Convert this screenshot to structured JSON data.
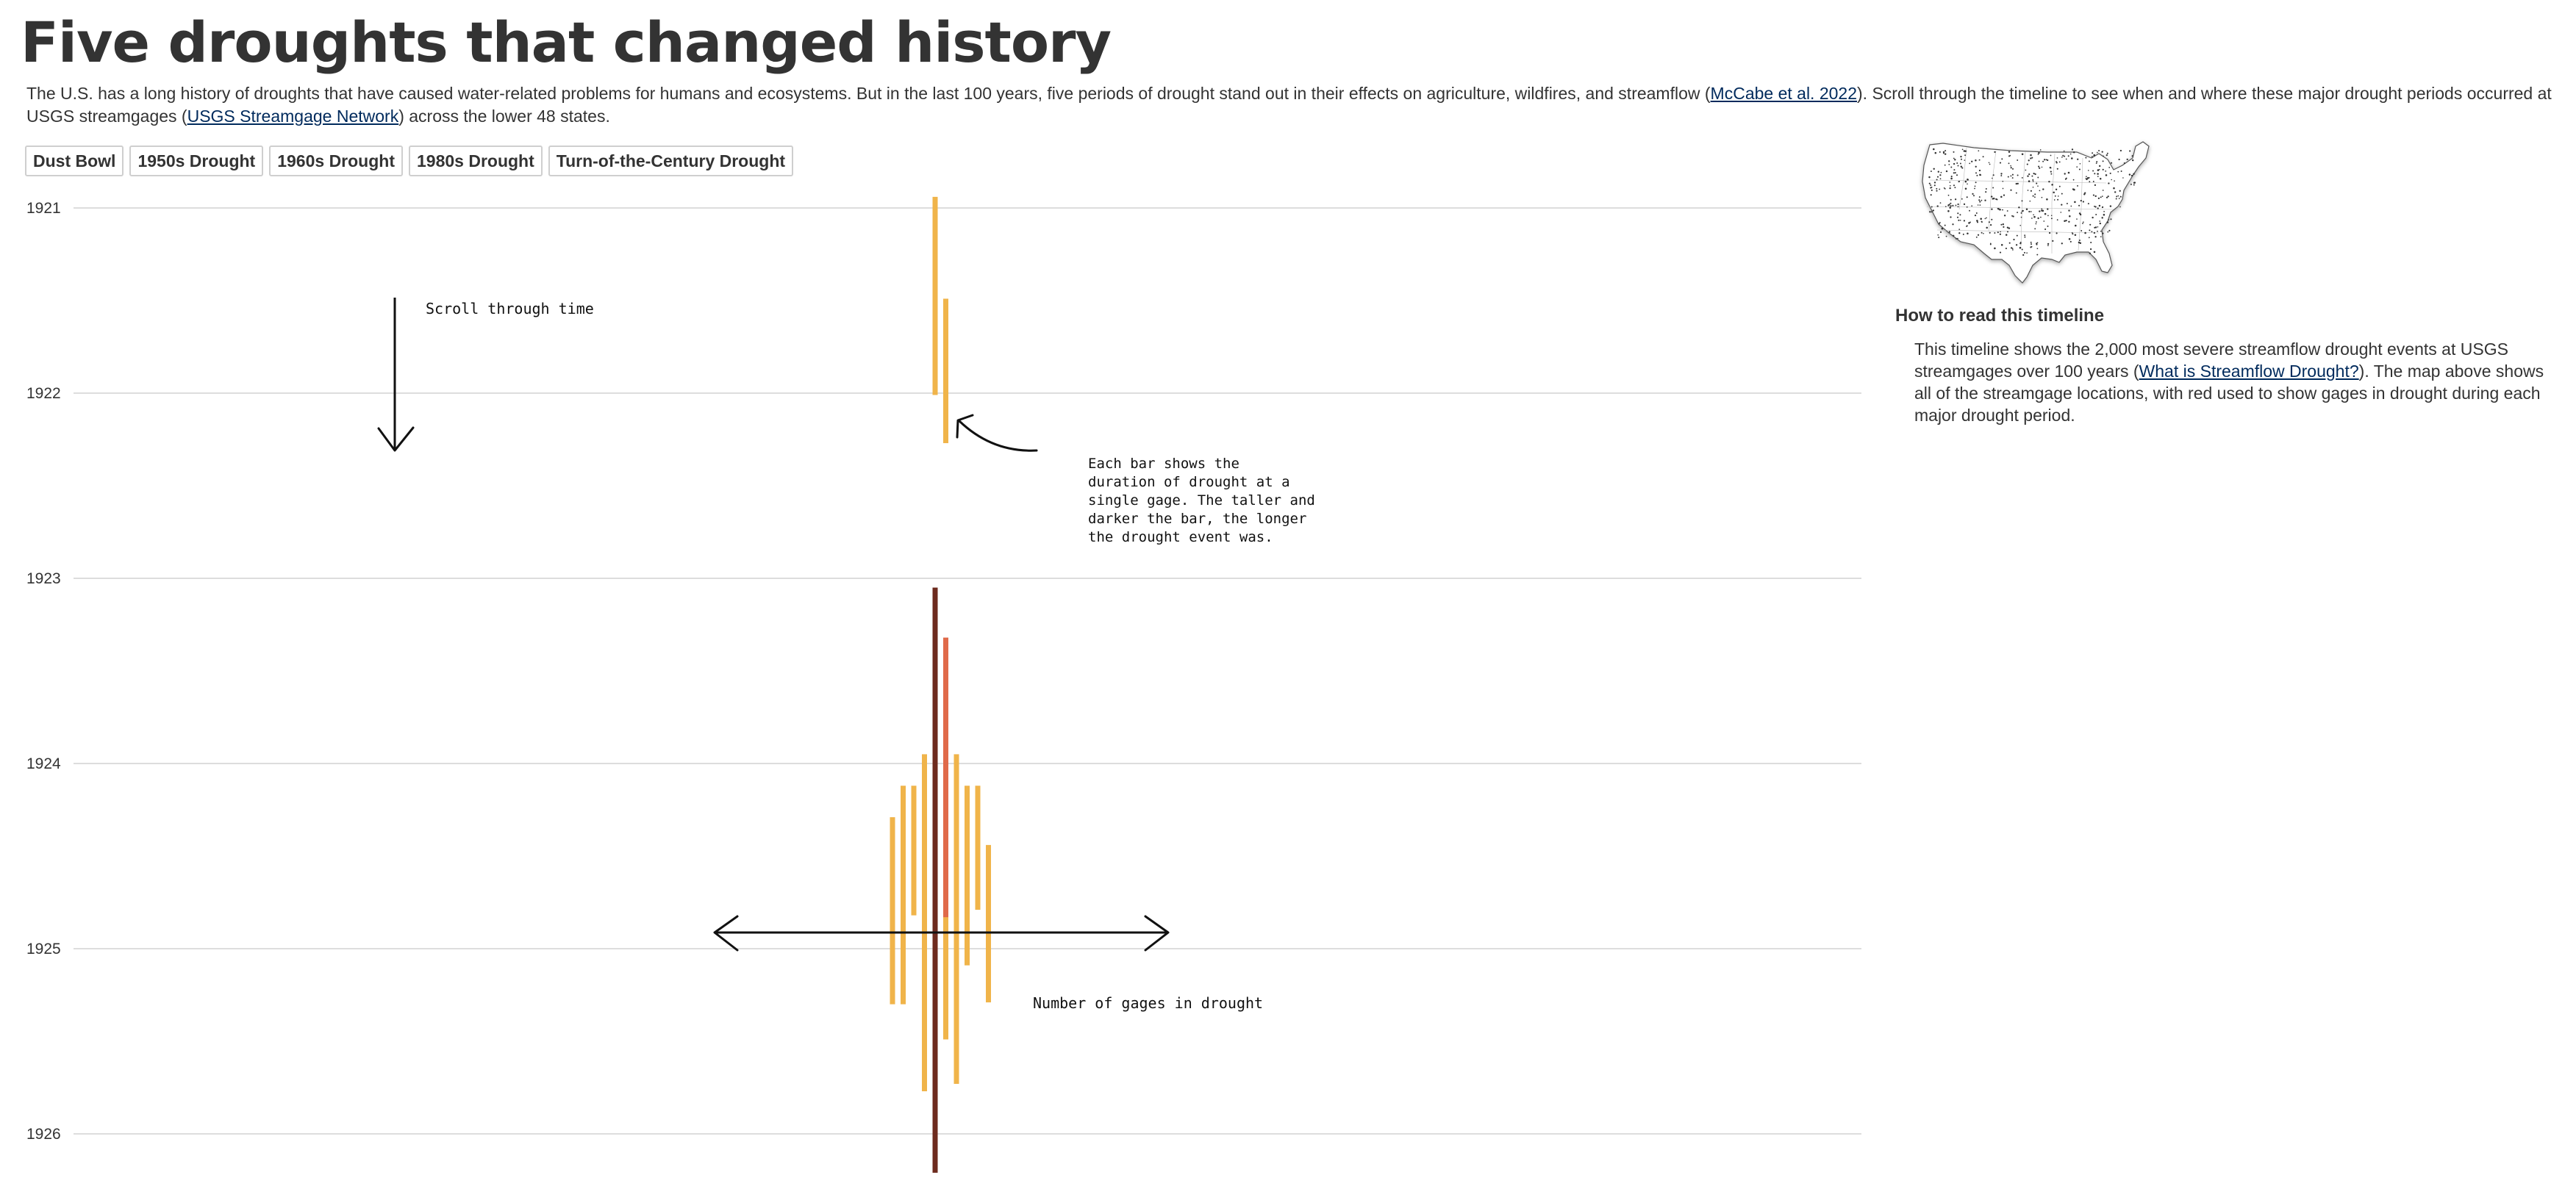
{
  "header": {
    "title": "Five droughts that changed history"
  },
  "intro": {
    "part1": "The U.S. has a long history of droughts that have caused water-related problems for humans and ecosystems. But in the last 100 years, five periods of drought stand out in their effects on agriculture, wildfires, and streamflow (",
    "link1": "McCabe et al. 2022",
    "part2": "). Scroll through the timeline to see when and where these major drought periods occurred at USGS streamgages (",
    "link2": "USGS Streamgage Network",
    "part3": ") across the lower 48 states."
  },
  "drought_buttons": [
    "Dust Bowl",
    "1950s Drought",
    "1960s Drought",
    "1980s Drought",
    "Turn-of-the-Century Drought"
  ],
  "timeline": {
    "years": [
      "1921",
      "1922",
      "1923",
      "1924",
      "1925",
      "1926"
    ],
    "annotations": {
      "scroll": "Scroll through time",
      "bar_help": [
        "Each bar shows the",
        "duration of drought at a",
        "single gage. The taller and",
        "darker the bar, the longer",
        "the drought event was."
      ],
      "count_help": "Number of gages in drought"
    },
    "events": [
      {
        "offset": 0,
        "start": 1920.94,
        "end": 1922.01,
        "color": "#f0b44a"
      },
      {
        "offset": 1,
        "start": 1921.49,
        "end": 1922.27,
        "color": "#f0b44a"
      },
      {
        "offset": 0,
        "start": 1923.05,
        "end": 1926.21,
        "color": "#6e2b1e"
      },
      {
        "offset": 1,
        "start": 1923.32,
        "end": 1924.96,
        "color": "#e06a4a"
      },
      {
        "offset": 1,
        "start": 1924.83,
        "end": 1925.49,
        "color": "#f0b44a"
      },
      {
        "offset": -1,
        "start": 1923.95,
        "end": 1925.77,
        "color": "#f0b44a"
      },
      {
        "offset": 2,
        "start": 1923.95,
        "end": 1925.73,
        "color": "#f0b44a"
      },
      {
        "offset": -2,
        "start": 1924.12,
        "end": 1924.82,
        "color": "#f0b44a"
      },
      {
        "offset": 3,
        "start": 1924.12,
        "end": 1925.09,
        "color": "#f0b44a"
      },
      {
        "offset": -3,
        "start": 1924.12,
        "end": 1925.3,
        "color": "#f0b44a"
      },
      {
        "offset": 4,
        "start": 1924.12,
        "end": 1924.79,
        "color": "#f0b44a"
      },
      {
        "offset": -4,
        "start": 1924.29,
        "end": 1925.3,
        "color": "#f0b44a"
      },
      {
        "offset": 5,
        "start": 1924.44,
        "end": 1925.29,
        "color": "#f0b44a"
      }
    ]
  },
  "sidebar": {
    "how_to_title": "How to read this timeline",
    "how_to_part1": "This timeline shows the 2,000 most severe streamflow drought events at USGS streamgages over 100 years (",
    "how_to_link": "What is Streamflow Drought?",
    "how_to_part2": "). The map above shows all of the streamgage locations, with red used to show gages in drought during each major drought period."
  }
}
